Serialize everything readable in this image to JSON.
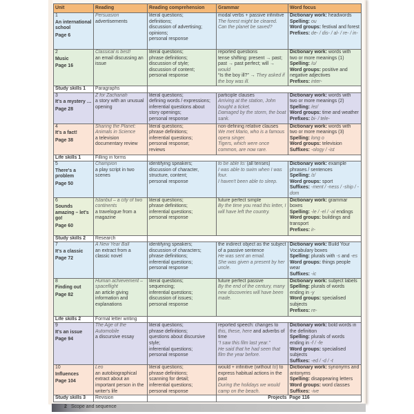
{
  "header": {
    "unit": "Unit",
    "reading": "Reading",
    "comprehension": "Reading comprehension",
    "grammar": "Grammar",
    "word_focus": "Word focus"
  },
  "colors": {
    "header": "#f5b978",
    "blue": "#dcecf7",
    "green": "#e2efdc",
    "lavender": "#dcdbee",
    "peach": "#fbe4d6",
    "lime": "#e9f0da"
  },
  "rows": [
    {
      "type": "unit",
      "color": "blue",
      "h": 53,
      "num": "1",
      "title": "An international school",
      "page": "Page 6",
      "reading": {
        "title": "Persuasion",
        "desc": "advertisements"
      },
      "comprehension": [
        "literal questions;",
        "definitions;",
        "discussion of advertising;",
        "opinions;",
        "personal response"
      ],
      "grammar": [
        [
          {
            "t": "modal verbs + passive infinitive"
          }
        ],
        [
          {
            "t": "The forest might be cleared.",
            "i": true
          }
        ],
        [
          {
            "t": "Can the planet be saved?",
            "i": true
          }
        ]
      ],
      "word_focus": [
        {
          "label": "Dictionary work:",
          "value": [
            {
              "t": " headwords"
            }
          ]
        },
        {
          "label": "Spelling:",
          "value": [
            {
              "t": " ou",
              "i": true
            }
          ]
        },
        {
          "label": "Word groups:",
          "value": [
            {
              "t": " festival and forest"
            }
          ]
        },
        {
          "label": "Prefixes:",
          "value": [
            {
              "t": " de- / dis- / al- / re- / in-",
              "i": true
            }
          ]
        }
      ]
    },
    {
      "type": "unit",
      "color": "green",
      "h": 53,
      "num": "2",
      "title": "Music",
      "page": "Page 16",
      "reading": {
        "title": "Classical is best!",
        "desc": "an email discussing an issue"
      },
      "comprehension": [
        "literal questions;",
        "phrase definitions;",
        "discussion of style;",
        "discussion of content;",
        "personal response"
      ],
      "grammar": [
        [
          {
            "t": "reported questions"
          }
        ],
        [
          {
            "t": "tense shifting: present → past; past → past perfect; will → "
          },
          {
            "t": "would",
            "i": true
          }
        ],
        [
          {
            "t": "“Is the boy ill?” → "
          },
          {
            "t": "They asked if the boy was ill.",
            "i": true
          }
        ]
      ],
      "word_focus": [
        {
          "label": "Dictionary work:",
          "value": [
            {
              "t": " words with two or more meanings (1)"
            }
          ]
        },
        {
          "label": "Spelling:",
          "value": [
            {
              "t": " /ʊ/",
              "i": true
            }
          ]
        },
        {
          "label": "Word groups:",
          "value": [
            {
              "t": " positive and negative adjectives"
            }
          ]
        },
        {
          "label": "Prefixes:",
          "value": [
            {
              "t": " inter-",
              "i": true
            }
          ]
        }
      ]
    },
    {
      "type": "skills",
      "label": "Study skills 1",
      "topic": "Paragraphs"
    },
    {
      "type": "unit",
      "color": "lav",
      "h": 45,
      "num": "3",
      "title": "It's a mystery …",
      "page": "Page 28",
      "reading": {
        "title": "Z for Zachariah",
        "desc": "a story with an unusual opening"
      },
      "comprehension": [
        "literal questions;",
        "defining words / expressions;",
        "inferential questions about story openings;",
        "personal response"
      ],
      "grammar": [
        [
          {
            "t": "participle clauses"
          }
        ],
        [
          {
            "t": "Arriving at the station, John bought a ticket.",
            "i": true
          }
        ],
        [
          {
            "t": "Damaged by the storm, the boat sank.",
            "i": true
          }
        ]
      ],
      "word_focus": [
        {
          "label": "Dictionary work:",
          "value": [
            {
              "t": " words with two or more meanings (2)"
            }
          ]
        },
        {
          "label": "Spelling:",
          "value": [
            {
              "t": " /eɪ/",
              "i": true
            }
          ]
        },
        {
          "label": "Word groups:",
          "value": [
            {
              "t": " time and weather"
            }
          ]
        },
        {
          "label": "Prefixes:",
          "value": [
            {
              "t": " bi- / tele-",
              "i": true
            }
          ]
        }
      ]
    },
    {
      "type": "unit",
      "color": "peach",
      "h": 45,
      "num": "4",
      "title": "It's a fact!",
      "page": "Page 38",
      "reading": {
        "title": "Sharing the Planet: Animals in Science",
        "desc": "a television documentary review"
      },
      "comprehension": [
        "literal questions;",
        "phrase definitions;",
        "inferential questions;",
        "personal response;",
        "reviews"
      ],
      "grammar": [
        [
          {
            "t": "non-defining relative clauses"
          }
        ],
        [
          {
            "t": "We met Mario, who is a famous opera singer.",
            "i": true
          }
        ],
        [
          {
            "t": "Tigers, which were once common, are now rare.",
            "i": true
          }
        ]
      ],
      "word_focus": [
        {
          "label": "Dictionary work:",
          "value": [
            {
              "t": " words with two or more meanings (3)"
            }
          ]
        },
        {
          "label": "Spelling:",
          "value": [
            {
              "t": " long o",
              "i": true
            }
          ]
        },
        {
          "label": "Word groups:",
          "value": [
            {
              "t": " television"
            }
          ]
        },
        {
          "label": "Suffixes:",
          "value": [
            {
              "t": " -ology / -ist",
              "i": true
            }
          ]
        }
      ]
    },
    {
      "type": "skills",
      "label": "Life skills 1",
      "topic": "Filling in forms"
    },
    {
      "type": "unit",
      "color": "blue",
      "h": 52,
      "num": "5",
      "title": "There's a problem",
      "page": "Page 50",
      "reading": {
        "title": "Champion",
        "desc": "a play script in two scenes"
      },
      "comprehension": [
        "identifying speakers;",
        "discussion of character, structure, content;",
        "personal response"
      ],
      "grammar": [
        [
          {
            "t": "to be able to:",
            "i": true
          },
          {
            "t": " (all tenses)"
          }
        ],
        [
          {
            "t": "I was able to swim when I was four.",
            "i": true
          }
        ],
        [
          {
            "t": "I haven't been able to sleep.",
            "i": true
          }
        ]
      ],
      "word_focus": [
        {
          "label": "Dictionary work:",
          "value": [
            {
              "t": " example phrases / sentences"
            }
          ]
        },
        {
          "label": "Spelling:",
          "value": [
            {
              "t": " /ɪ/",
              "i": true
            }
          ]
        },
        {
          "label": "Word groups:",
          "value": [
            {
              "t": " sport"
            }
          ]
        },
        {
          "label": "Suffixes:",
          "value": [
            {
              "t": " -ment / -ness / -ship / -dom",
              "i": true
            }
          ]
        }
      ]
    },
    {
      "type": "unit",
      "color": "lime",
      "h": 55,
      "num": "6",
      "title": "Sounds amazing – let's go!",
      "page": "Page 60",
      "reading": {
        "title": "Istanbul – a city of two continents",
        "desc": "a travelogue from a magazine"
      },
      "comprehension": [
        "literal questions;",
        "phrase definitions;",
        "inferential questions;",
        "personal response"
      ],
      "grammar": [
        [
          {
            "t": "future perfect simple"
          }
        ],
        [
          {
            "t": "By the time you read this letter, I will have left the country.",
            "i": true
          }
        ]
      ],
      "word_focus": [
        {
          "label": "Dictionary work:",
          "value": [
            {
              "t": " grammar boxes"
            }
          ]
        },
        {
          "label": "Spelling:",
          "value": [
            {
              "t": " -le / -el / -al",
              "i": true
            },
            {
              "t": " endings"
            }
          ]
        },
        {
          "label": "Word groups:",
          "value": [
            {
              "t": " buildings and transport"
            }
          ]
        },
        {
          "label": "Prefixes:",
          "value": [
            {
              "t": " ir-",
              "i": true
            }
          ]
        }
      ]
    },
    {
      "type": "skills",
      "label": "Study skills 2",
      "topic": "Research"
    },
    {
      "type": "unit",
      "color": "blue",
      "h": 52,
      "num": "7",
      "title": "It's a classic",
      "page": "Page 72",
      "reading": {
        "title": "A New Year Ball",
        "desc": "an extract from a classic novel"
      },
      "comprehension": [
        "identifying speakers;",
        "discussion of characters;",
        "phrase definitions;",
        "inferential questions;",
        "personal response"
      ],
      "grammar": [
        [
          {
            "t": "the indirect object as the subject of a passive sentence"
          }
        ],
        [
          {
            "t": "He was sent an email.",
            "i": true
          }
        ],
        [
          {
            "t": "She was given a present by her uncle.",
            "i": true
          }
        ]
      ],
      "word_focus": [
        {
          "label": "Dictionary work:",
          "value": [
            {
              "t": " Build Your Vocabulary boxes"
            }
          ]
        },
        {
          "label": "Spelling:",
          "value": [
            {
              "t": " plurals with "
            },
            {
              "t": "-s",
              "i": true
            },
            {
              "t": " and "
            },
            {
              "t": "-es",
              "i": true
            }
          ]
        },
        {
          "label": "Word groups:",
          "value": [
            {
              "t": " things people wear"
            }
          ]
        },
        {
          "label": "Suffixes:",
          "value": [
            {
              "t": " -ic",
              "i": true
            }
          ]
        }
      ]
    },
    {
      "type": "unit",
      "color": "green",
      "h": 55,
      "num": "8",
      "title": "Finding out",
      "page": "Page 82",
      "reading": {
        "title": "Human achievement – spaceflight",
        "desc": "an article giving information and explanations"
      },
      "comprehension": [
        "literal questions;",
        "sequencing;",
        "inferential questions;",
        "discussion of issues;",
        "personal response"
      ],
      "grammar": [
        [
          {
            "t": "future perfect passive"
          }
        ],
        [
          {
            "t": "By the end of the century, many new discoveries will have been made.",
            "i": true
          }
        ]
      ],
      "word_focus": [
        {
          "label": "Dictionary work:",
          "value": [
            {
              "t": " subject labels"
            }
          ]
        },
        {
          "label": "Spelling:",
          "value": [
            {
              "t": " plurals of words ending in "
            },
            {
              "t": "-y",
              "i": true
            }
          ]
        },
        {
          "label": "Word groups:",
          "value": [
            {
              "t": " specialised subjects"
            }
          ]
        },
        {
          "label": "Prefixes:",
          "value": [
            {
              "t": " re-",
              "i": true
            }
          ]
        }
      ]
    },
    {
      "type": "skills",
      "label": "Life skills 2",
      "topic": "Formal letter writing"
    },
    {
      "type": "unit",
      "color": "lav",
      "h": 61,
      "num": "9",
      "title": "It's an issue",
      "page": "Page 94",
      "reading": {
        "title": "The Age of the Automobile",
        "desc": "a discursive essay"
      },
      "comprehension": [
        "literal questions;",
        "phrase definitions;",
        "questions about discursive style;",
        "inferential questions;",
        "personal response"
      ],
      "grammar": [
        [
          {
            "t": "reported speech: changes to "
          },
          {
            "t": "this, these, here",
            "i": true
          },
          {
            "t": " and adverbs of time"
          }
        ],
        [
          {
            "t": "“I saw this film last year.”",
            "i": true
          }
        ],
        [
          {
            "t": "He said that he had seen that film the year before.",
            "i": true
          }
        ]
      ],
      "word_focus": [
        {
          "label": "Dictionary work:",
          "value": [
            {
              "t": " bold words in the definition"
            }
          ]
        },
        {
          "label": "Spelling:",
          "value": [
            {
              "t": " plurals of words ending in "
            },
            {
              "t": "-f / -fe",
              "i": true
            }
          ]
        },
        {
          "label": "Word groups:",
          "value": [
            {
              "t": " specialised subjects"
            }
          ]
        },
        {
          "label": "Suffixes:",
          "value": [
            {
              "t": " -ed / -d / -t",
              "i": true
            }
          ]
        }
      ]
    },
    {
      "type": "unit",
      "color": "peach",
      "h": 44,
      "num": "10",
      "title": "Influences",
      "page": "Page 104",
      "reading": {
        "title": "Leo",
        "desc": "an autobiographical extract about an important person in the writer's life"
      },
      "comprehension": [
        "literal questions;",
        "phrase definitions;",
        "scanning for detail;",
        "inferential questions;",
        "personal response"
      ],
      "grammar": [
        [
          {
            "t": "would + infinitive (without "
          },
          {
            "t": "to",
            "i": true
          },
          {
            "t": ") to express habitual actions in the past"
          }
        ],
        [
          {
            "t": "During the holidays we would camp on the beach.",
            "i": true
          }
        ]
      ],
      "word_focus": [
        {
          "label": "Dictionary work:",
          "value": [
            {
              "t": " synonyms and antonyms"
            }
          ]
        },
        {
          "label": "Spelling:",
          "value": [
            {
              "t": " disappearing letters"
            }
          ]
        },
        {
          "label": "Word groups:",
          "value": [
            {
              "t": " word classes"
            }
          ]
        },
        {
          "label": "Suffixes:",
          "value": [
            {
              "t": " -ive",
              "i": true
            }
          ]
        }
      ]
    },
    {
      "type": "skills",
      "label": "Study skills 3",
      "topic": "Revision",
      "projects": "Projects",
      "projects_page": "Page 116"
    }
  ],
  "footer": {
    "page_number": "2",
    "title": "Scope and sequence"
  }
}
